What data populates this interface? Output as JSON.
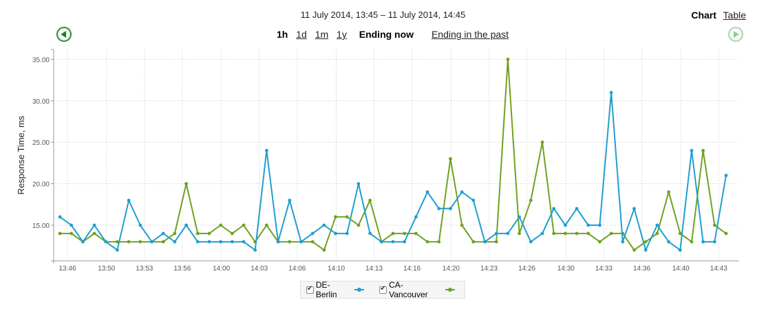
{
  "header": {
    "range_title": "11 July 2014, 13:45 – 11 July 2014, 14:45",
    "periods": [
      {
        "label": "1h",
        "selected": true
      },
      {
        "label": "1d",
        "selected": false
      },
      {
        "label": "1m",
        "selected": false
      },
      {
        "label": "1y",
        "selected": false
      }
    ],
    "ending_now": "Ending now",
    "ending_past": "Ending in the past",
    "view_chart": "Chart",
    "view_table": "Table",
    "prev_icon": "arrow-left-circle-icon",
    "next_icon": "arrow-right-circle-icon"
  },
  "legend": {
    "items": [
      {
        "label": "DE-Berlin",
        "color": "#1f9ed1",
        "checked": true
      },
      {
        "label": "CA-Vancouver",
        "color": "#6ea21f",
        "checked": true
      }
    ]
  },
  "chart_data": {
    "type": "line",
    "title": "11 July 2014, 13:45 – 11 July 2014, 14:45",
    "xlabel": "",
    "ylabel": "Response Time, ms",
    "ylim": [
      10.7,
      35.9
    ],
    "yticks": [
      "15.00",
      "20.00",
      "25.00",
      "30.00",
      "35.00"
    ],
    "ytick_values": [
      15,
      20,
      25,
      30,
      35
    ],
    "xticks": [
      "13:46",
      "13:50",
      "13:53",
      "13:56",
      "14:00",
      "14:03",
      "14:06",
      "14:10",
      "14:13",
      "14:16",
      "14:20",
      "14:23",
      "14:26",
      "14:30",
      "14:33",
      "14:36",
      "14:40",
      "14:43"
    ],
    "xtick_index": [
      1.3,
      4.7,
      8.0,
      11.3,
      14.7,
      18.0,
      21.3,
      24.7,
      28.0,
      31.3,
      34.7,
      38.0,
      41.3,
      44.7,
      48.0,
      51.3,
      54.7,
      58.0
    ],
    "grid": true,
    "legend_position": "bottom",
    "x_start": "13:46",
    "x_interval_minutes": 1,
    "series": [
      {
        "name": "DE-Berlin",
        "color": "#1f9ed1",
        "values": [
          16,
          15,
          13,
          15,
          13,
          12,
          18,
          15,
          13,
          14,
          13,
          15,
          13,
          13,
          13,
          13,
          13,
          12,
          24,
          13,
          18,
          13,
          14,
          15,
          14,
          14,
          20,
          14,
          13,
          13,
          13,
          16,
          19,
          17,
          17,
          19,
          18,
          13,
          14,
          14,
          16,
          13,
          14,
          17,
          15,
          17,
          15,
          15,
          31,
          13,
          17,
          12,
          15,
          13,
          12,
          24,
          13,
          13,
          21
        ]
      },
      {
        "name": "CA-Vancouver",
        "color": "#6ea21f",
        "values": [
          14,
          14,
          13,
          14,
          13,
          13,
          13,
          13,
          13,
          13,
          14,
          20,
          14,
          14,
          15,
          14,
          15,
          13,
          15,
          13,
          13,
          13,
          13,
          12,
          16,
          16,
          15,
          18,
          13,
          14,
          14,
          14,
          13,
          13,
          23,
          15,
          13,
          13,
          13,
          35,
          14,
          18,
          25,
          14,
          14,
          14,
          14,
          13,
          14,
          14,
          12,
          13,
          14,
          19,
          14,
          13,
          24,
          15,
          14
        ]
      }
    ]
  }
}
